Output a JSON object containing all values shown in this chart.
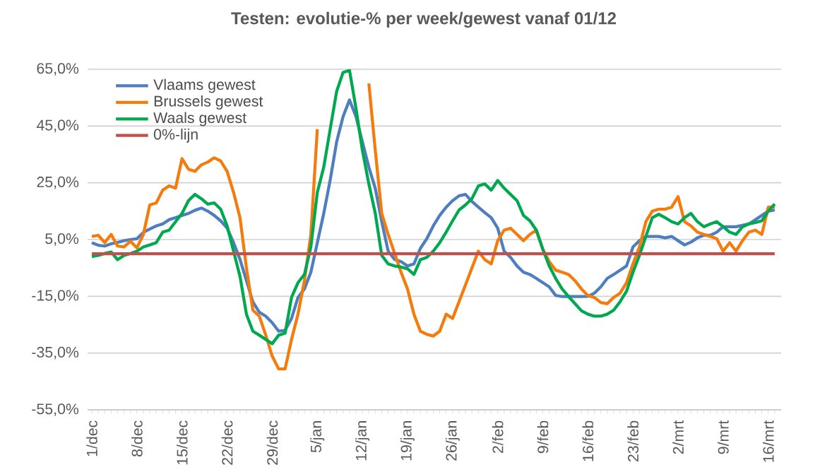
{
  "chart_data": {
    "type": "line",
    "title": "Testen: evolutie-% per week/gewest vanaf 01/12",
    "categories": [
      "1/dec",
      null,
      null,
      null,
      null,
      null,
      null,
      "8/dec",
      null,
      null,
      null,
      null,
      null,
      null,
      "15/dec",
      null,
      null,
      null,
      null,
      null,
      null,
      "22/dec",
      null,
      null,
      null,
      null,
      null,
      null,
      "29/dec",
      null,
      null,
      null,
      null,
      null,
      null,
      "5/jan",
      null,
      null,
      null,
      null,
      null,
      null,
      "12/jan",
      null,
      null,
      null,
      null,
      null,
      null,
      "19/jan",
      null,
      null,
      null,
      null,
      null,
      null,
      "26/jan",
      null,
      null,
      null,
      null,
      null,
      null,
      "2/feb",
      null,
      null,
      null,
      null,
      null,
      null,
      "9/feb",
      null,
      null,
      null,
      null,
      null,
      null,
      "16/feb",
      null,
      null,
      null,
      null,
      null,
      null,
      "23/feb",
      null,
      null,
      null,
      null,
      null,
      null,
      "2/mrt",
      null,
      null,
      null,
      null,
      null,
      null,
      "9/mrt",
      null,
      null,
      null,
      null,
      null,
      null,
      "16/mrt",
      null
    ],
    "series": [
      {
        "name": "Vlaams gewest",
        "color": "#4f7ec0",
        "values": [
          3.9,
          3,
          2.7,
          3.5,
          4,
          4.6,
          5,
          5.3,
          7.5,
          8.7,
          9.8,
          10.5,
          12,
          12.7,
          13.5,
          14.2,
          15.3,
          16.1,
          15,
          13.5,
          11.6,
          9,
          3.9,
          -2,
          -9.5,
          -17,
          -20.6,
          -22,
          -24.3,
          -27.3,
          -27,
          -22.8,
          -15.4,
          -12.4,
          -6.5,
          3.9,
          14.2,
          26,
          39.4,
          48.3,
          54.2,
          48.3,
          39.4,
          30.5,
          23,
          11.3,
          0.9,
          -2,
          -2.8,
          -4.3,
          -3.6,
          1.9,
          5.3,
          9.8,
          13.5,
          16.4,
          18.7,
          20.4,
          20.9,
          18.4,
          16.4,
          14.5,
          12.7,
          9,
          0.9,
          -1.3,
          -4.3,
          -6.5,
          -7.3,
          -8.7,
          -10.2,
          -11.7,
          -14.7,
          -15.1,
          -15.1,
          -15.1,
          -15.1,
          -15,
          -13.9,
          -11.7,
          -8.7,
          -7.3,
          -5.8,
          -4.3,
          2.4,
          4.6,
          6.1,
          6.1,
          6.1,
          5.6,
          6.1,
          4.6,
          3.1,
          4.1,
          5.6,
          6.5,
          6.5,
          7.6,
          9.5,
          9.5,
          9.5,
          10,
          10.5,
          12,
          13.5,
          15,
          15.4
        ]
      },
      {
        "name": "Brussels gewest",
        "color": "#f47b0c",
        "values": [
          6.1,
          6.5,
          3.9,
          6.8,
          2.7,
          2.4,
          4.4,
          2.1,
          6.8,
          17.2,
          17.9,
          22.4,
          23.9,
          23.1,
          33.5,
          29.8,
          29,
          31.3,
          32.3,
          33.8,
          32.7,
          29,
          21.6,
          12.7,
          -5,
          -19.9,
          -22,
          -28.7,
          -36.1,
          -40.6,
          -40.6,
          -30.2,
          -21.3,
          -9.5,
          6.8,
          43.9,
          null,
          null,
          null,
          null,
          null,
          null,
          null,
          60,
          36.4,
          14.2,
          6.8,
          0.1,
          -6.5,
          -12.4,
          -21.3,
          -27.3,
          -28.4,
          -29,
          -27.3,
          -21.3,
          -22.8,
          -16.9,
          -11,
          -5,
          0.9,
          -2.1,
          -3.6,
          4.6,
          8.3,
          9,
          6.8,
          4.6,
          6.8,
          8.3,
          1.6,
          -2.8,
          -5.8,
          -6.5,
          -7.3,
          -9.5,
          -12.4,
          -14.7,
          -15.4,
          -17.2,
          -17.6,
          -15.4,
          -13.9,
          -10.2,
          -3.6,
          2.4,
          11.3,
          15,
          15.7,
          15.7,
          16.4,
          20.1,
          11.3,
          9.8,
          7.6,
          6.8,
          6.1,
          5.3,
          0.9,
          3.9,
          0.9,
          4.6,
          7.6,
          8.3,
          6.8,
          16.4,
          16.4
        ]
      },
      {
        "name": "Waals gewest",
        "color": "#00a84f",
        "values": [
          -1,
          -0.6,
          0.1,
          0.6,
          -2.1,
          -0.6,
          0.1,
          0.9,
          2.4,
          3.1,
          3.9,
          7.6,
          8.3,
          11.3,
          14.2,
          18.7,
          20.9,
          19.4,
          17.5,
          17.9,
          15.7,
          9.8,
          0.9,
          -8,
          -21.3,
          -27.3,
          -28.7,
          -30.2,
          -31.7,
          -28.7,
          -28,
          -15.4,
          -10.2,
          -7.3,
          2.4,
          21.6,
          30.5,
          43.9,
          57.2,
          63.9,
          64.6,
          51.3,
          36.4,
          24.6,
          14.2,
          -0.6,
          -3.6,
          -4.3,
          -4.7,
          -5.3,
          -7.3,
          -2.1,
          -1.3,
          0.9,
          3.9,
          7.6,
          11.6,
          15.4,
          17.2,
          19.4,
          23.9,
          24.6,
          22.4,
          25.8,
          23.1,
          20.9,
          18.7,
          13.5,
          11.6,
          8.3,
          1.6,
          -4.3,
          -8.7,
          -12.4,
          -15.1,
          -17.6,
          -20.1,
          -21.3,
          -22,
          -22,
          -21.3,
          -19.9,
          -16.9,
          -13.2,
          -6.5,
          -0.6,
          6.1,
          12.7,
          13.9,
          12.7,
          11.3,
          10.5,
          12.7,
          14.2,
          11.3,
          9.5,
          10.5,
          11.3,
          9.5,
          7.6,
          6.8,
          9.5,
          10.5,
          11,
          11.6,
          15,
          17.5
        ]
      },
      {
        "name": "0%-lijn",
        "color": "#c0504d",
        "values": [
          0,
          0,
          0,
          0,
          0,
          0,
          0,
          0,
          0,
          0,
          0,
          0,
          0,
          0,
          0,
          0,
          0,
          0,
          0,
          0,
          0,
          0,
          0,
          0,
          0,
          0,
          0,
          0,
          0,
          0,
          0,
          0,
          0,
          0,
          0,
          0,
          0,
          0,
          0,
          0,
          0,
          0,
          0,
          0,
          0,
          0,
          0,
          0,
          0,
          0,
          0,
          0,
          0,
          0,
          0,
          0,
          0,
          0,
          0,
          0,
          0,
          0,
          0,
          0,
          0,
          0,
          0,
          0,
          0,
          0,
          0,
          0,
          0,
          0,
          0,
          0,
          0,
          0,
          0,
          0,
          0,
          0,
          0,
          0,
          0,
          0,
          0,
          0,
          0,
          0,
          0,
          0,
          0,
          0,
          0,
          0,
          0,
          0,
          0,
          0,
          0,
          0,
          0,
          0,
          0,
          0,
          0
        ]
      }
    ],
    "ylim": [
      -55,
      65
    ],
    "yticks": [
      {
        "value": -55,
        "label": "-55,0%"
      },
      {
        "value": -35,
        "label": "-35,0%"
      },
      {
        "value": -15,
        "label": "-15,0%"
      },
      {
        "value": 5,
        "label": "5,0%"
      },
      {
        "value": 25,
        "label": "25,0%"
      },
      {
        "value": 45,
        "label": "45,0%"
      },
      {
        "value": 65,
        "label": "65,0%"
      }
    ],
    "grid": "y",
    "legend": "top left",
    "marker": "none"
  }
}
